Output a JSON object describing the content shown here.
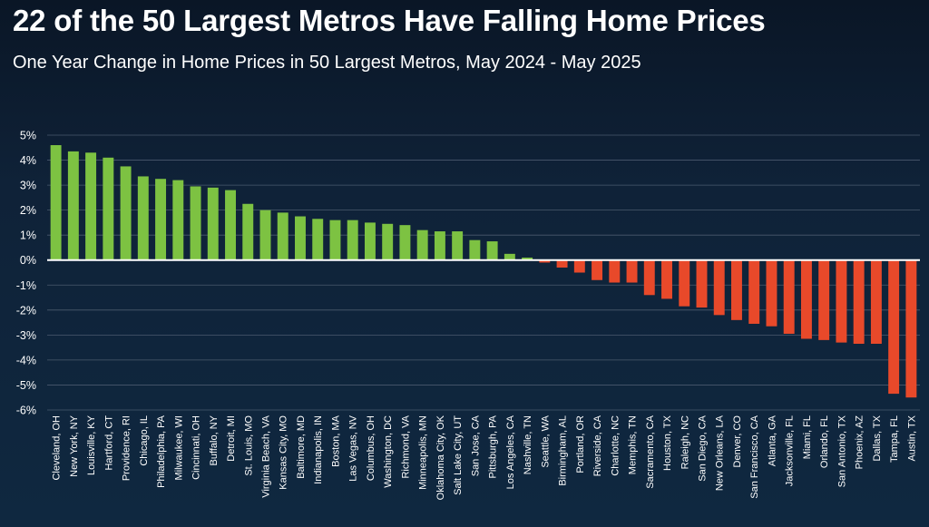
{
  "title": "22 of the 50 Largest Metros Have Falling Home Prices",
  "subtitle": "One Year Change in Home Prices in 50 Largest Metros, May 2024 - May 2025",
  "colors": {
    "positive": "#7dc242",
    "negative": "#e8492a",
    "zero_line": "#ffffff",
    "grid": "#4a5a6e",
    "text": "#ffffff"
  },
  "chart_data": {
    "type": "bar",
    "title": "",
    "xlabel": "",
    "ylabel": "",
    "ylim": [
      -6,
      5
    ],
    "ytick_values": [
      5,
      4,
      3,
      2,
      1,
      0,
      -1,
      -2,
      -3,
      -4,
      -5,
      -6
    ],
    "ytick_labels": [
      "5%",
      "4%",
      "3%",
      "2%",
      "1%",
      "0%",
      "-1%",
      "-2%",
      "-3%",
      "-4%",
      "-5%",
      "-6%"
    ],
    "grid": true,
    "categories": [
      "Cleveland, OH",
      "New York, NY",
      "Louisville, KY",
      "Hartford, CT",
      "Providence, RI",
      "Chicago, IL",
      "Philadelphia, PA",
      "Milwaukee, WI",
      "Cincinnati, OH",
      "Buffalo, NY",
      "Detroit, MI",
      "St. Louis, MO",
      "Virginia Beach, VA",
      "Kansas City, MO",
      "Baltimore, MD",
      "Indianapolis, IN",
      "Boston, MA",
      "Las Vegas, NV",
      "Columbus, OH",
      "Washington, DC",
      "Richmond, VA",
      "Minneapolis, MN",
      "Oklahoma City, OK",
      "Salt Lake City, UT",
      "San Jose, CA",
      "Pittsburgh, PA",
      "Los Angeles, CA",
      "Nashville, TN",
      "Seattle, WA",
      "Birmingham, AL",
      "Portland, OR",
      "Riverside, CA",
      "Charlotte, NC",
      "Memphis, TN",
      "Sacramento, CA",
      "Houston, TX",
      "Raleigh, NC",
      "San Diego, CA",
      "New Orleans, LA",
      "Denver, CO",
      "San Francisco, CA",
      "Atlanta, GA",
      "Jacksonville, FL",
      "Miami, FL",
      "Orlando, FL",
      "San Antonio, TX",
      "Phoenix, AZ",
      "Dallas, TX",
      "Tampa, FL",
      "Austin, TX"
    ],
    "values": [
      4.6,
      4.35,
      4.3,
      4.1,
      3.75,
      3.35,
      3.25,
      3.2,
      2.95,
      2.9,
      2.8,
      2.25,
      2.0,
      1.9,
      1.75,
      1.65,
      1.6,
      1.6,
      1.5,
      1.45,
      1.4,
      1.2,
      1.15,
      1.15,
      0.8,
      0.75,
      0.25,
      0.1,
      -0.1,
      -0.3,
      -0.5,
      -0.8,
      -0.9,
      -0.9,
      -1.4,
      -1.55,
      -1.85,
      -1.9,
      -2.2,
      -2.4,
      -2.55,
      -2.65,
      -2.95,
      -3.15,
      -3.2,
      -3.3,
      -3.35,
      -3.35,
      -5.35,
      -5.5
    ]
  }
}
